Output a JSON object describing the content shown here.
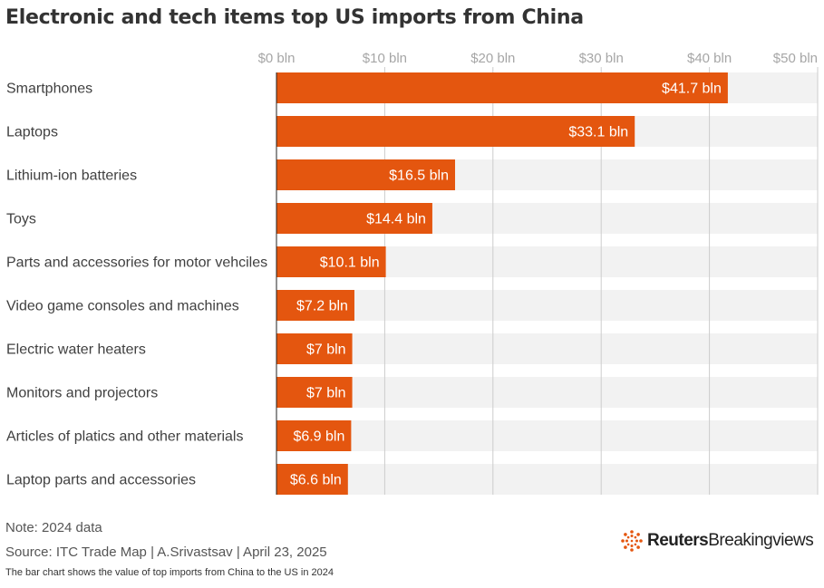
{
  "title": "Electronic and tech items top US imports from China",
  "note": "Note: 2024 data",
  "source": "Source: ITC Trade Map | A.Srivastsav | April 23, 2025",
  "description": "The bar chart shows the value of top imports from China to the US in 2024",
  "logo": {
    "brand": "Reuters",
    "product": "Breakingviews"
  },
  "colors": {
    "bar": "#E4560F",
    "track": "#F2F2F2",
    "grid": "#CCCCCC",
    "axis_text": "#A6A6A6",
    "label_text": "#404040"
  },
  "chart_data": {
    "type": "bar",
    "orientation": "horizontal",
    "categories": [
      "Smartphones",
      "Laptops",
      "Lithium-ion batteries",
      "Toys",
      "Parts and accessories for motor vehciles",
      "Video game consoles and machines",
      "Electric water heaters",
      "Monitors and projectors",
      "Articles of platics and other materials",
      "Laptop parts and accessories"
    ],
    "values": [
      41.7,
      33.1,
      16.5,
      14.4,
      10.1,
      7.2,
      7,
      7,
      6.9,
      6.6
    ],
    "value_labels": [
      "$41.7 bln",
      "$33.1 bln",
      "$16.5 bln",
      "$14.4 bln",
      "$10.1 bln",
      "$7.2 bln",
      "$7 bln",
      "$7 bln",
      "$6.9 bln",
      "$6.6 bln"
    ],
    "xlim": [
      0,
      50
    ],
    "xticks": [
      0,
      10,
      20,
      30,
      40,
      50
    ],
    "xtick_labels": [
      "$0 bln",
      "$10 bln",
      "$20 bln",
      "$30 bln",
      "$40 bln",
      "$50 bln"
    ],
    "grid": true,
    "axis_position": "top"
  }
}
